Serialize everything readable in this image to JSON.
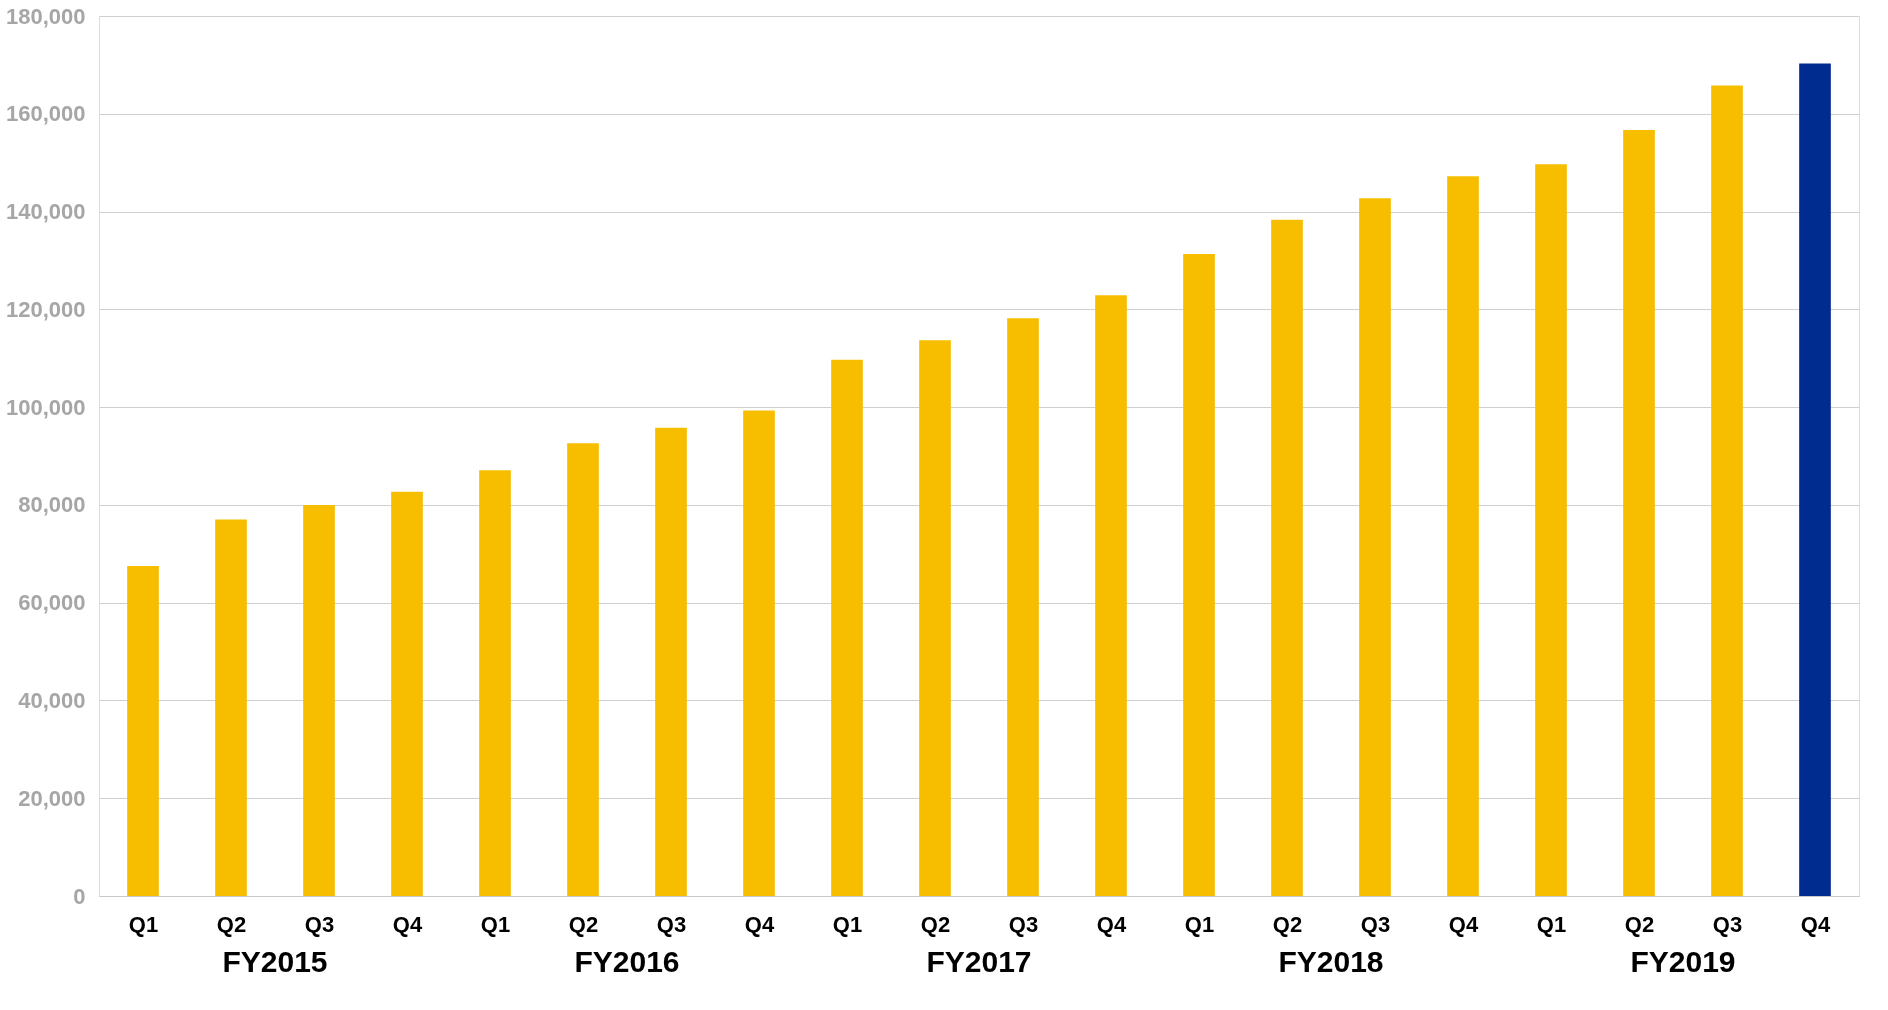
{
  "chart_data": {
    "type": "bar",
    "categories": [
      "Q1",
      "Q2",
      "Q3",
      "Q4",
      "Q1",
      "Q2",
      "Q3",
      "Q4",
      "Q1",
      "Q2",
      "Q3",
      "Q4",
      "Q1",
      "Q2",
      "Q3",
      "Q4",
      "Q1",
      "Q2",
      "Q3",
      "Q4"
    ],
    "values": [
      67500,
      77000,
      80000,
      82700,
      87100,
      92600,
      95800,
      99300,
      109700,
      113700,
      118200,
      122900,
      131300,
      138300,
      142700,
      147200,
      149700,
      156700,
      165800,
      170300
    ],
    "colors": [
      "#f7be00",
      "#f7be00",
      "#f7be00",
      "#f7be00",
      "#f7be00",
      "#f7be00",
      "#f7be00",
      "#f7be00",
      "#f7be00",
      "#f7be00",
      "#f7be00",
      "#f7be00",
      "#f7be00",
      "#f7be00",
      "#f7be00",
      "#f7be00",
      "#f7be00",
      "#f7be00",
      "#f7be00",
      "#002b8f"
    ],
    "annotations": [
      "FY2015",
      "FY2016",
      "FY2017",
      "FY2018",
      "FY2019"
    ],
    "ylim": [
      0,
      180000
    ],
    "yticks": [
      0,
      {
        "value": 20000,
        "label": "20,000"
      },
      {
        "value": 40000,
        "label": "40,000"
      },
      {
        "value": 60000,
        "label": "60,000"
      },
      {
        "value": 80000,
        "label": "80,000"
      },
      {
        "value": 100000,
        "label": "100,000"
      },
      {
        "value": 120000,
        "label": "120,000"
      },
      {
        "value": 140000,
        "label": "140,000"
      },
      {
        "value": 160000,
        "label": "160,000"
      },
      {
        "value": 180000,
        "label": "180,000"
      }
    ],
    "grid": "y"
  }
}
